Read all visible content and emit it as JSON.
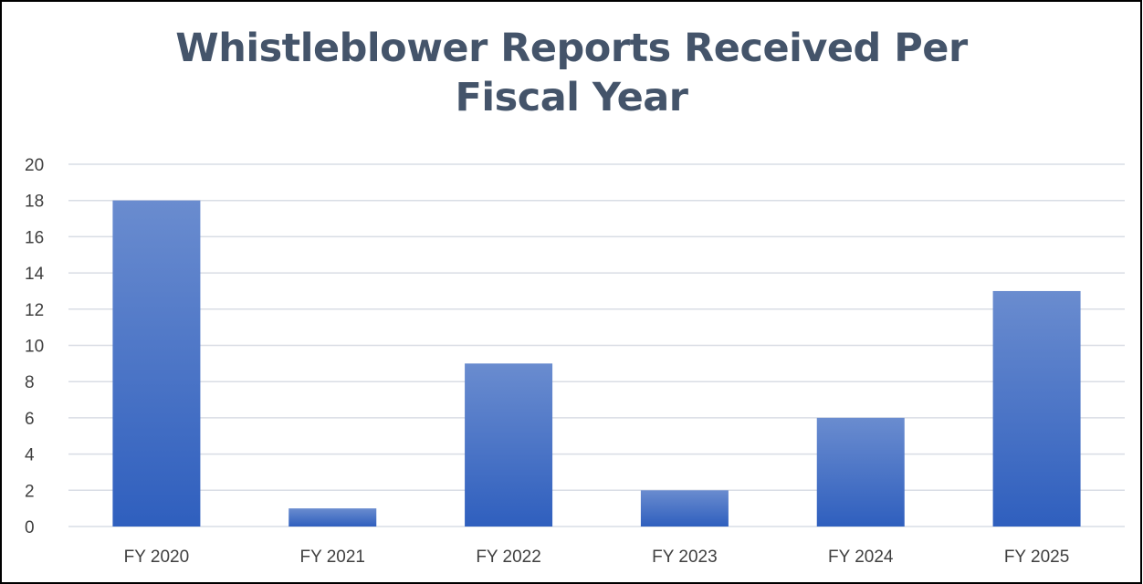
{
  "chart_data": {
    "type": "bar",
    "title_lines": [
      "Whistleblower Reports Received Per",
      "Fiscal Year"
    ],
    "categories": [
      "FY 2020",
      "FY 2021",
      "FY 2022",
      "FY 2023",
      "FY 2024",
      "FY 2025"
    ],
    "values": [
      18,
      1,
      9,
      2,
      6,
      13
    ],
    "ylim": [
      0,
      20
    ],
    "yticks": [
      "0",
      "2",
      "4",
      "6",
      "8",
      "10",
      "12",
      "14",
      "16",
      "18",
      "20"
    ],
    "grid": true,
    "legend": "none"
  },
  "colors": {
    "title": "#44546a",
    "bar_top": "#6a8ccf",
    "bar_bottom": "#2f5fbe",
    "grid": "#d9dde5",
    "tick": "#404040"
  }
}
